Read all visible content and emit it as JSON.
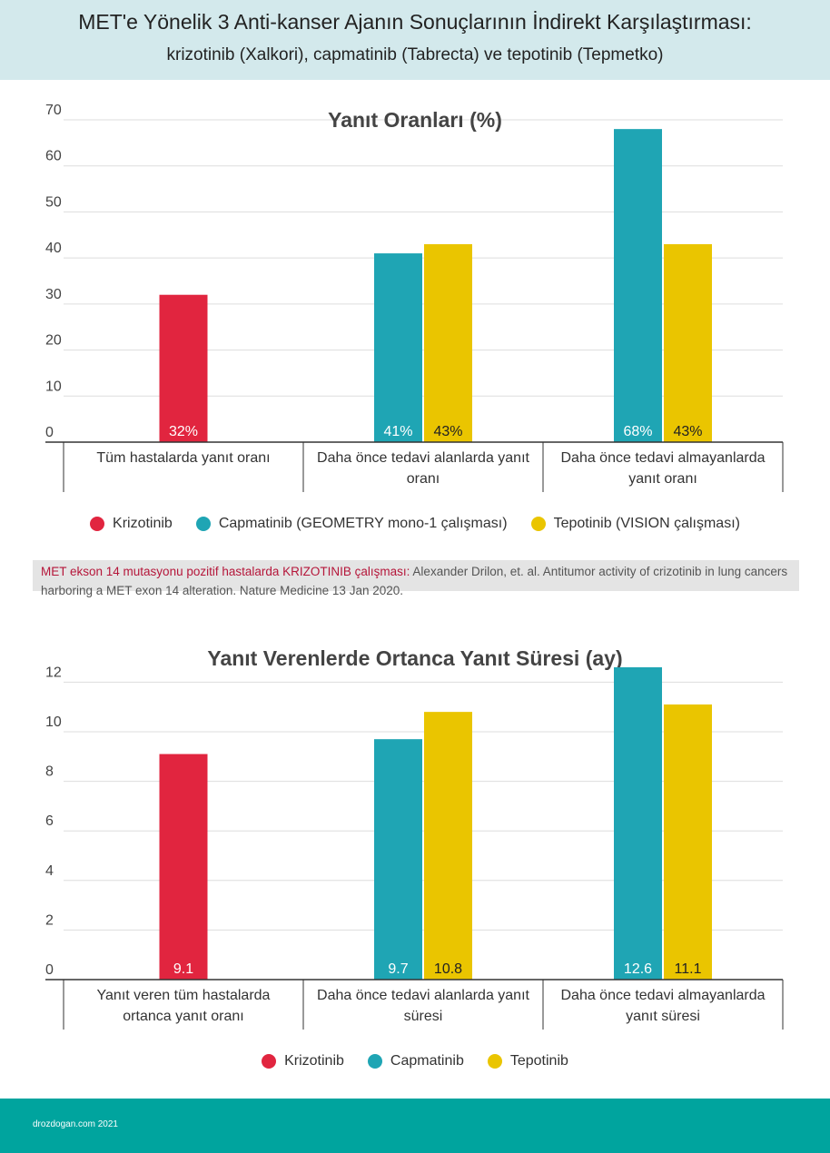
{
  "header": {
    "title_line1": "MET'e Yönelik 3 Anti-kanser Ajanın Sonuçlarının İndirekt Karşılaştırması:",
    "title_line2": "krizotinib (Xalkori), capmatinib (Tabrecta) ve tepotinib (Tepmetko)"
  },
  "colors": {
    "krizotinib": "#e1253f",
    "capmatinib": "#1fa5b4",
    "tepotinib": "#eac500",
    "header_bg": "#d3e9ec",
    "footer_bg": "#00a49e"
  },
  "chart_data": [
    {
      "type": "bar",
      "title": "Yanıt Oranları (%)",
      "categories": [
        "Tüm hastalarda yanıt oranı",
        "Daha önce tedavi alanlarda yanıt oranı",
        "Daha önce tedavi almayanlarda yanıt oranı"
      ],
      "category_lines": [
        [
          "Tüm hastalarda yanıt oranı"
        ],
        [
          "Daha önce tedavi alanlarda yanıt",
          "oranı"
        ],
        [
          "Daha önce tedavi almayanlarda",
          "yanıt oranı"
        ]
      ],
      "series": [
        {
          "name": "Krizotinib",
          "color": "#e1253f",
          "values": [
            32,
            null,
            null
          ],
          "labels": [
            "32%",
            "",
            ""
          ]
        },
        {
          "name": "Capmatinib (GEOMETRY mono-1 çalışması)",
          "color": "#1fa5b4",
          "values": [
            null,
            41,
            68
          ],
          "labels": [
            "",
            "41%",
            "68%"
          ]
        },
        {
          "name": "Tepotinib (VISION çalışması)",
          "color": "#eac500",
          "values": [
            null,
            43,
            43
          ],
          "labels": [
            "",
            "43%",
            "43%"
          ]
        }
      ],
      "ylim": [
        0,
        70
      ],
      "yticks": [
        0,
        10,
        20,
        30,
        40,
        50,
        60,
        70
      ],
      "grid": true,
      "legend": "bottom"
    },
    {
      "type": "bar",
      "title": "Yanıt Verenlerde Ortanca Yanıt Süresi (ay)",
      "categories": [
        "Yanıt veren tüm hastalarda ortanca yanıt oranı",
        "Daha önce tedavi alanlarda yanıt süresi",
        "Daha önce tedavi almayanlarda yanıt süresi"
      ],
      "category_lines": [
        [
          "Yanıt veren tüm hastalarda",
          "ortanca yanıt oranı"
        ],
        [
          "Daha önce tedavi alanlarda yanıt",
          "süresi"
        ],
        [
          "Daha önce tedavi almayanlarda",
          "yanıt süresi"
        ]
      ],
      "series": [
        {
          "name": "Krizotinib",
          "color": "#e1253f",
          "values": [
            9.1,
            null,
            null
          ],
          "labels": [
            "9.1",
            "",
            ""
          ]
        },
        {
          "name": "Capmatinib",
          "color": "#1fa5b4",
          "values": [
            null,
            9.7,
            12.6
          ],
          "labels": [
            "",
            "9.7",
            "12.6"
          ]
        },
        {
          "name": "Tepotinib",
          "color": "#eac500",
          "values": [
            null,
            10.8,
            11.1
          ],
          "labels": [
            "",
            "10.8",
            "11.1"
          ]
        }
      ],
      "ylim": [
        0,
        12.6
      ],
      "yticks": [
        0,
        2,
        4,
        6,
        8,
        10,
        12
      ],
      "grid": true,
      "legend": "bottom"
    }
  ],
  "source": {
    "highlight": "MET ekson 14 mutasyonu pozitif hastalarda KRIZOTINIB çalışması:",
    "text": " Alexander Drilon, et. al. Antitumor activity of crizotinib in lung cancers harboring a MET exon 14 alteration. Nature Medicine 13 Jan 2020."
  },
  "footer": {
    "credit": "drozdogan.com 2021"
  }
}
